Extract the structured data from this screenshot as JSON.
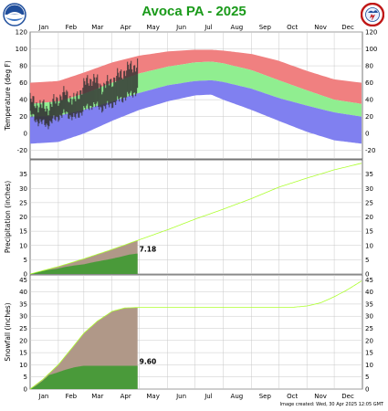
{
  "title": "Avoca PA - 2025",
  "footer": "Image created: Wed, 30 Apr 2025 12:05 GMT",
  "logos": {
    "left": "noaa-logo",
    "right": "nws-logo"
  },
  "colors": {
    "record_high": "#f08080",
    "normal_band": "#90ee90",
    "record_low": "#8080f0",
    "observed": "#333333",
    "normal_precip": "#adff2f",
    "obs_precip_fill": "#4a9a3a",
    "normal_area_fill": "#b09888",
    "grid": "#c8c8c8"
  },
  "chart_data": [
    {
      "type": "area",
      "panel": "temperature",
      "ylabel": "Temperature (deg F)",
      "ylim": [
        -30,
        120
      ],
      "yticks": [
        -20,
        0,
        20,
        40,
        60,
        80,
        100,
        120
      ],
      "months": [
        "Jan",
        "Feb",
        "Mar",
        "Apr",
        "May",
        "Jun",
        "Jul",
        "Aug",
        "Sep",
        "Oct",
        "Nov",
        "Dec"
      ],
      "grid": true,
      "series": [
        {
          "name": "Record High",
          "x": [
            1,
            32,
            60,
            91,
            121,
            152,
            182,
            200,
            213,
            244,
            274,
            305,
            335,
            365
          ],
          "values": [
            60,
            62,
            72,
            84,
            92,
            97,
            99,
            99,
            98,
            94,
            86,
            74,
            64,
            60
          ]
        },
        {
          "name": "Normal High",
          "x": [
            1,
            32,
            60,
            91,
            121,
            152,
            182,
            200,
            213,
            244,
            274,
            305,
            335,
            365
          ],
          "values": [
            35,
            38,
            47,
            60,
            71,
            79,
            84,
            85,
            83,
            75,
            63,
            51,
            40,
            35
          ]
        },
        {
          "name": "Normal Low",
          "x": [
            1,
            32,
            60,
            91,
            121,
            152,
            182,
            200,
            213,
            244,
            274,
            305,
            335,
            365
          ],
          "values": [
            20,
            21,
            28,
            38,
            48,
            57,
            62,
            63,
            61,
            53,
            42,
            33,
            25,
            20
          ]
        },
        {
          "name": "Record Low",
          "x": [
            1,
            32,
            60,
            91,
            121,
            152,
            182,
            200,
            213,
            244,
            274,
            305,
            335,
            365
          ],
          "values": [
            -12,
            -10,
            0,
            15,
            28,
            38,
            45,
            46,
            40,
            28,
            15,
            2,
            -8,
            -12
          ]
        },
        {
          "name": "Observed High",
          "x": [
            1,
            10,
            20,
            30,
            40,
            50,
            60,
            70,
            80,
            90,
            100,
            110,
            119
          ],
          "values": [
            40,
            34,
            30,
            40,
            48,
            38,
            58,
            66,
            55,
            62,
            70,
            78,
            82
          ]
        },
        {
          "name": "Observed Low",
          "x": [
            1,
            10,
            20,
            30,
            40,
            50,
            60,
            70,
            80,
            90,
            100,
            110,
            119
          ],
          "values": [
            22,
            14,
            10,
            18,
            24,
            18,
            28,
            34,
            30,
            34,
            40,
            45,
            50
          ]
        }
      ]
    },
    {
      "type": "area",
      "panel": "precipitation",
      "ylabel": "Precipitation (inches)",
      "ylim": [
        0,
        40
      ],
      "yticks": [
        0,
        5,
        10,
        15,
        20,
        25,
        30,
        35
      ],
      "grid": true,
      "annotation": "7.18",
      "series": [
        {
          "name": "Normal Precipitation",
          "x": [
            1,
            32,
            60,
            91,
            121,
            152,
            182,
            213,
            244,
            274,
            305,
            335,
            365
          ],
          "values": [
            0,
            2.6,
            5.3,
            8.6,
            12.0,
            15.5,
            19.2,
            22.7,
            26.4,
            30.4,
            33.6,
            36.5,
            38.8
          ]
        },
        {
          "name": "Observed Precipitation",
          "x": [
            1,
            10,
            20,
            30,
            40,
            50,
            60,
            70,
            80,
            90,
            100,
            110,
            119
          ],
          "values": [
            0,
            0.8,
            1.4,
            1.8,
            2.5,
            3.0,
            3.4,
            4.1,
            4.7,
            5.3,
            6.0,
            6.8,
            7.18
          ]
        }
      ]
    },
    {
      "type": "area",
      "panel": "snowfall",
      "ylabel": "Snowfall (inches)",
      "ylim": [
        0,
        47
      ],
      "yticks": [
        0,
        5,
        10,
        15,
        20,
        25,
        30,
        35,
        40,
        45
      ],
      "grid": true,
      "annotation": "9.60",
      "series": [
        {
          "name": "Normal Snowfall",
          "x": [
            1,
            15,
            32,
            45,
            60,
            75,
            91,
            105,
            120,
            152,
            182,
            213,
            244,
            274,
            290,
            305,
            320,
            335,
            350,
            365
          ],
          "values": [
            0,
            4,
            10,
            16,
            23,
            28,
            32,
            33.4,
            33.6,
            33.6,
            33.6,
            33.6,
            33.6,
            33.6,
            33.7,
            34.2,
            35.5,
            38,
            41,
            44.5
          ]
        },
        {
          "name": "Observed Snowfall",
          "x": [
            1,
            8,
            15,
            22,
            30,
            40,
            50,
            60,
            75,
            90,
            105,
            119
          ],
          "values": [
            0,
            1.5,
            3.5,
            5.8,
            6.7,
            8.0,
            9.0,
            9.6,
            9.6,
            9.6,
            9.6,
            9.6
          ]
        }
      ]
    }
  ]
}
